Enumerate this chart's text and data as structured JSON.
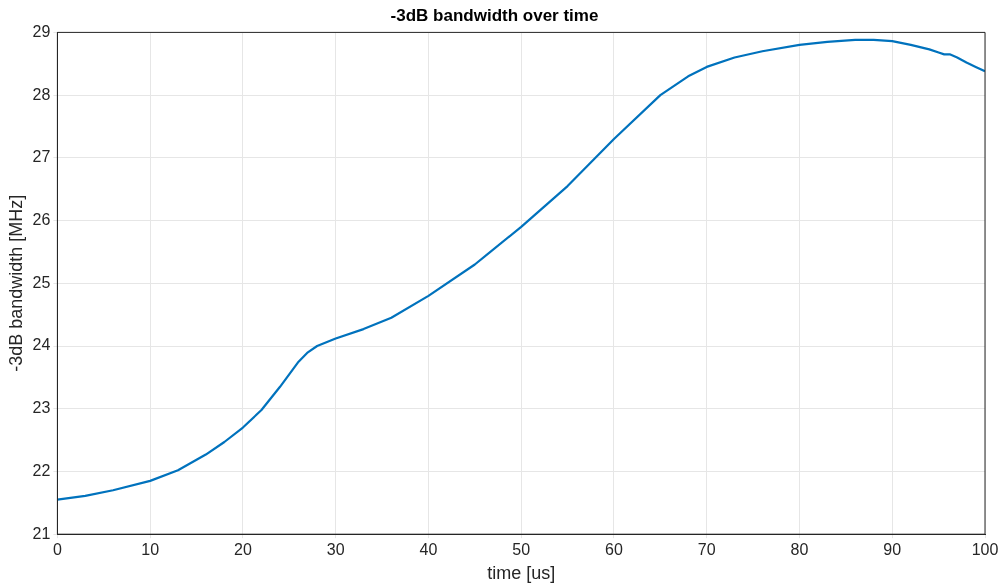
{
  "chart_data": {
    "type": "line",
    "title": "-3dB bandwidth over time",
    "xlabel": "time [us]",
    "ylabel": "-3dB bandwidth [MHz]",
    "x": [
      0,
      3,
      6,
      10,
      13,
      16,
      18,
      20,
      22,
      24,
      26,
      27,
      28,
      30,
      33,
      36,
      40,
      45,
      50,
      55,
      60,
      65,
      68,
      70,
      73,
      76,
      80,
      83,
      86,
      88,
      90,
      92,
      94,
      95,
      95.6,
      96.2,
      97,
      98,
      99,
      100
    ],
    "series": [
      {
        "color": "#0072bd",
        "values": [
          21.55,
          21.61,
          21.7,
          21.85,
          22.02,
          22.27,
          22.47,
          22.7,
          22.98,
          23.35,
          23.75,
          23.9,
          24.0,
          24.12,
          24.27,
          24.45,
          24.8,
          25.3,
          25.9,
          26.55,
          27.3,
          28.0,
          28.3,
          28.45,
          28.6,
          28.7,
          28.8,
          28.85,
          28.88,
          28.88,
          28.86,
          28.8,
          28.73,
          28.68,
          28.65,
          28.65,
          28.6,
          28.52,
          28.45,
          28.38
        ]
      }
    ],
    "xlim": [
      0,
      100
    ],
    "ylim": [
      21,
      29
    ],
    "xticks": [
      0,
      10,
      20,
      30,
      40,
      50,
      60,
      70,
      80,
      90,
      100
    ],
    "yticks": [
      21,
      22,
      23,
      24,
      25,
      26,
      27,
      28,
      29
    ],
    "grid": true,
    "legend": false,
    "marker": "none",
    "line_style": "solid"
  }
}
